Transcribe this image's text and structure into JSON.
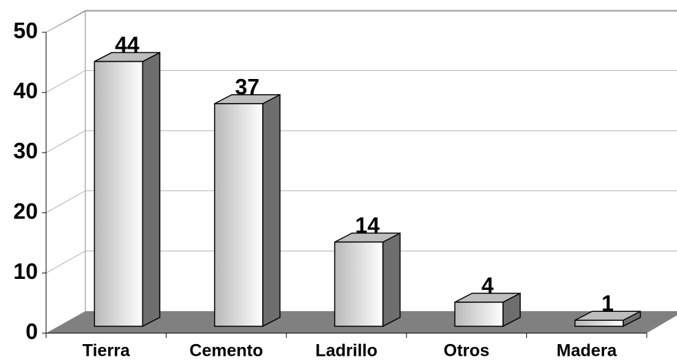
{
  "chart_data": {
    "type": "bar",
    "categories": [
      "Tierra",
      "Cemento",
      "Ladrillo",
      "Otros",
      "Madera"
    ],
    "values": [
      44,
      37,
      14,
      4,
      1
    ],
    "color": "#d9d9d9",
    "ylim": [
      0,
      50
    ],
    "yticks": [
      0,
      10,
      20,
      30,
      40,
      50
    ],
    "grid": true
  }
}
